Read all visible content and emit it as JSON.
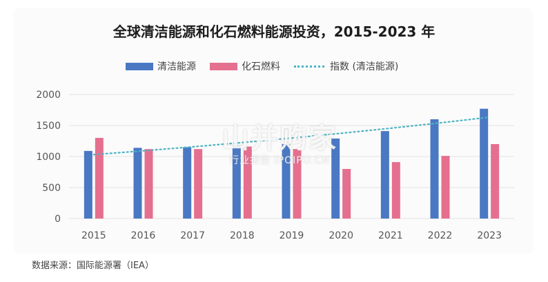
{
  "chart_data": {
    "type": "bar",
    "title": "全球清洁能源和化石燃料能源投资，2015-2023 年",
    "categories": [
      "2015",
      "2016",
      "2017",
      "2018",
      "2019",
      "2020",
      "2021",
      "2022",
      "2023"
    ],
    "series": [
      {
        "name": "清洁能源",
        "color": "#4a78c3",
        "values": [
          1090,
          1140,
          1150,
          1180,
          1200,
          1290,
          1410,
          1600,
          1770
        ]
      },
      {
        "name": "化石燃料",
        "color": "#e56f8f",
        "values": [
          1300,
          1120,
          1120,
          1160,
          1120,
          800,
          910,
          1010,
          1200
        ]
      }
    ],
    "trendline": {
      "name": "指数 (清洁能源)",
      "color": "#4bb3c3",
      "style": "dotted"
    },
    "yticks": [
      0,
      500,
      1000,
      1500,
      2000
    ],
    "ylim": [
      0,
      2000
    ],
    "grid": true,
    "legend": "top"
  },
  "watermark": {
    "line1": "山并购家",
    "line2": "行业报告 IPOIPO.CN"
  },
  "source": "数据来源：国际能源署（IEA）"
}
